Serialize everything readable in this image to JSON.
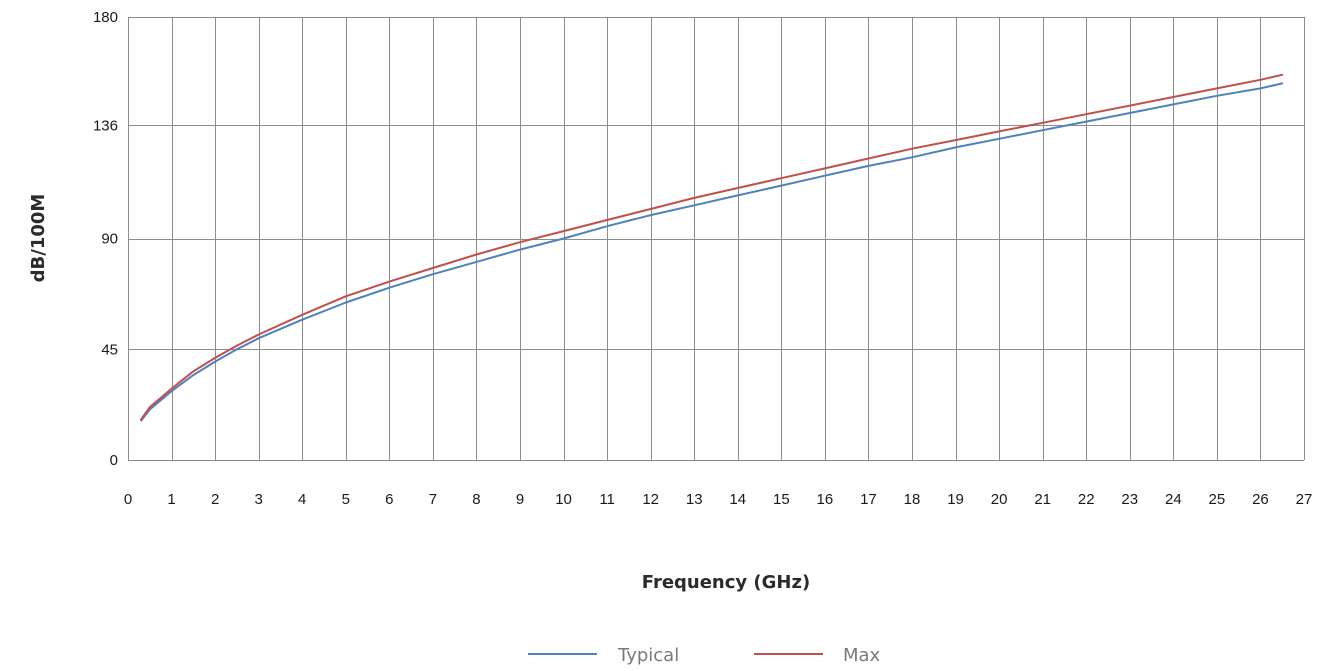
{
  "chart_data": {
    "type": "line",
    "title": "",
    "xlabel": "Frequency (GHz)",
    "ylabel": "dB/100M",
    "xlim": [
      0,
      27
    ],
    "ylim": [
      0,
      180
    ],
    "x_ticks": [
      0,
      1,
      2,
      3,
      4,
      5,
      6,
      7,
      8,
      9,
      10,
      11,
      12,
      13,
      14,
      15,
      16,
      17,
      18,
      19,
      20,
      21,
      22,
      23,
      24,
      25,
      26,
      27
    ],
    "y_ticks": [
      0,
      45,
      90,
      136,
      180
    ],
    "grid": true,
    "legend_position": "bottom",
    "series": [
      {
        "name": "Typical",
        "color": "#4f81bd",
        "x": [
          0.3,
          0.5,
          1,
          1.5,
          2,
          2.5,
          3,
          4,
          5,
          6,
          7,
          8,
          9,
          10,
          11,
          12,
          13,
          14,
          15,
          16,
          17,
          18,
          19,
          20,
          21,
          22,
          23,
          24,
          25,
          26,
          26.5
        ],
        "values": [
          16,
          20.5,
          28,
          34.5,
          40,
          45,
          49.5,
          57,
          64,
          70,
          75.5,
          80.5,
          85.5,
          90,
          95,
          99.5,
          103.5,
          107.5,
          111.5,
          115.5,
          119.5,
          123,
          127,
          130.5,
          134,
          137.5,
          141,
          144.5,
          148,
          151,
          153
        ]
      },
      {
        "name": "Max",
        "color": "#c0504d",
        "x": [
          0.3,
          0.5,
          1,
          1.5,
          2,
          2.5,
          3,
          4,
          5,
          6,
          7,
          8,
          9,
          10,
          11,
          12,
          13,
          14,
          15,
          16,
          17,
          18,
          19,
          20,
          21,
          22,
          23,
          24,
          25,
          26,
          26.5
        ],
        "values": [
          16.5,
          21.5,
          29,
          36,
          41.5,
          46.5,
          51,
          59,
          66.5,
          72.5,
          78,
          83.5,
          88.5,
          93,
          97.5,
          102,
          106.5,
          110.5,
          114.5,
          118.5,
          122.5,
          126.5,
          130,
          133.5,
          137,
          140.5,
          144,
          147.5,
          151,
          154.5,
          156.5
        ]
      }
    ]
  }
}
